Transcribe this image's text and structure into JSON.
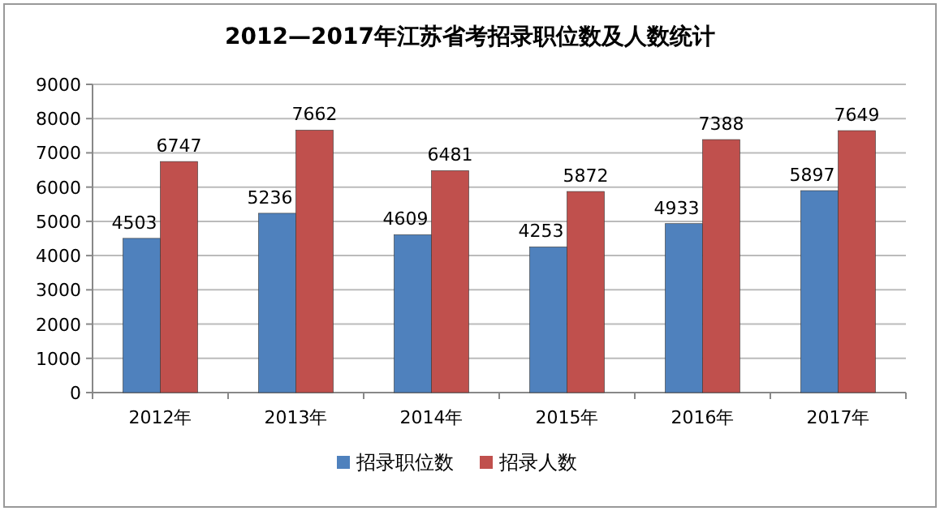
{
  "chart_data": {
    "type": "bar",
    "title": "2012—2017年江苏省考招录职位数及人数统计",
    "categories": [
      "2012年",
      "2013年",
      "2014年",
      "2015年",
      "2016年",
      "2017年"
    ],
    "series": [
      {
        "name": "招录职位数",
        "color": "#4f81bd",
        "values": [
          4503,
          5236,
          4609,
          4253,
          4933,
          5897
        ]
      },
      {
        "name": "招录人数",
        "color": "#c0504d",
        "values": [
          6747,
          7662,
          6481,
          5872,
          7388,
          7649
        ]
      }
    ],
    "ylim": [
      0,
      9000
    ],
    "yticks": [
      0,
      1000,
      2000,
      3000,
      4000,
      5000,
      6000,
      7000,
      8000,
      9000
    ],
    "grid": "y",
    "legend": "bottom",
    "data_labels": true
  }
}
